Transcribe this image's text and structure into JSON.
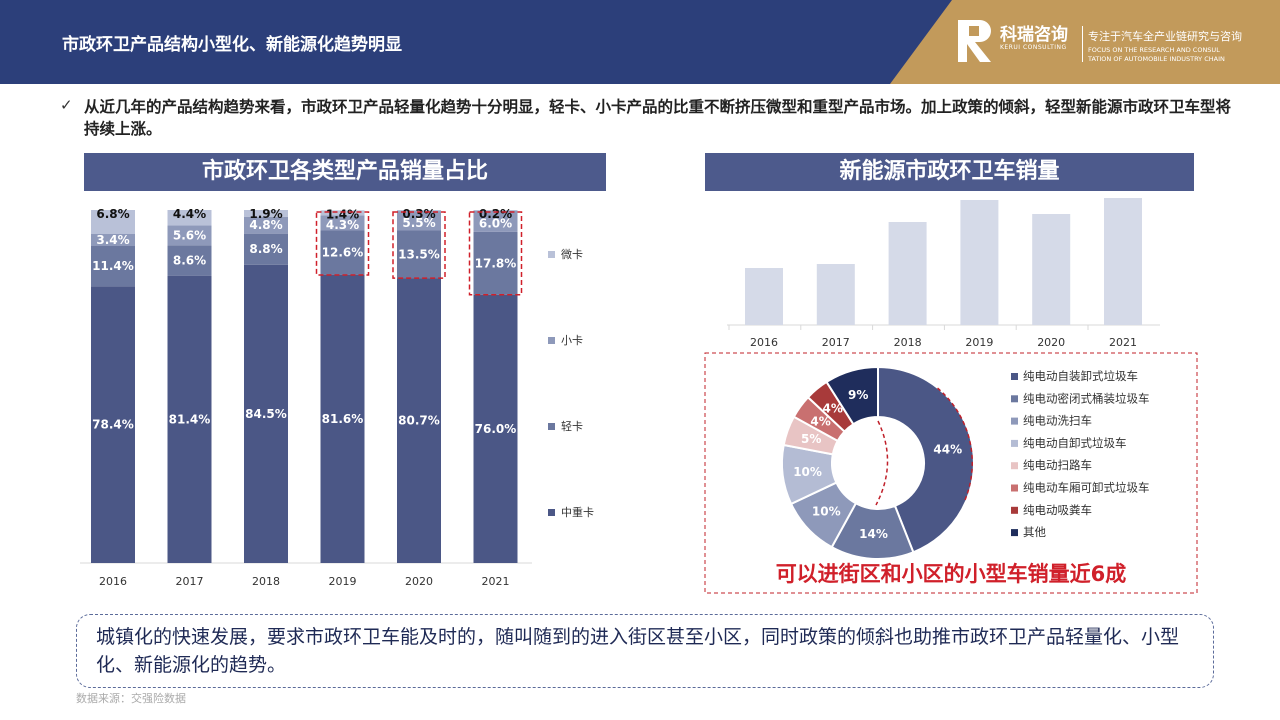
{
  "header": {
    "title": "市政环卫产品结构小型化、新能源化趋势明显",
    "logo_name": "科瑞咨询",
    "logo_en": "KERUI CONSULTING",
    "slogan": "专注于汽车全产业链研究与咨询",
    "slogan_en": "FOCUS ON THE RESEARCH AND CONSUL\nTATION OF AUTOMOBILE INDUSTRY CHAIN"
  },
  "bullet": {
    "check": "✓",
    "text": "从近几年的产品结构趋势来看，市政环卫产品轻量化趋势十分明显，轻卡、小卡产品的比重不断挤压微型和重型产品市场。加上政策的倾斜，轻型新能源市政环卫车型将持续上涨。"
  },
  "left_panel": {
    "title": "市政环卫各类型产品销量占比"
  },
  "right_panel": {
    "title": "新能源市政环卫车销量"
  },
  "highlight": "可以进街区和小区的小型车销量近6成",
  "callout": "城镇化的快速发展，要求市政环卫车能及时的，随叫随到的进入街区甚至小区，同时政策的倾斜也助推市政环卫产品轻量化、小型化、新能源化的趋势。",
  "source": "数据来源：交强险数据",
  "colors": {
    "navy": "#4d5a8c",
    "header": "#2c3f7a",
    "gold": "#c29a5b",
    "light_bar": "#d5dae8",
    "red": "#d0202a"
  },
  "chart_data": [
    {
      "type": "bar",
      "stacked": true,
      "percent": true,
      "categories": [
        "2016",
        "2017",
        "2018",
        "2019",
        "2020",
        "2021"
      ],
      "series": [
        {
          "name": "中重卡",
          "values": [
            78.4,
            81.4,
            84.5,
            81.6,
            80.7,
            76.0
          ],
          "labels": [
            "78.4%",
            "81.4%",
            "84.5%",
            "81.6%",
            "80.7%",
            "76.0%"
          ],
          "color": "#4b5786"
        },
        {
          "name": "轻卡",
          "values": [
            11.4,
            8.6,
            8.8,
            12.6,
            13.5,
            17.8
          ],
          "labels": [
            "11.4%",
            "8.6%",
            "8.8%",
            "12.6%",
            "13.5%",
            "17.8%"
          ],
          "color": "#6b789f"
        },
        {
          "name": "小卡",
          "values": [
            3.4,
            5.6,
            4.8,
            4.3,
            5.5,
            6.0
          ],
          "labels": [
            "3.4%",
            "5.6%",
            "4.8%",
            "4.3%",
            "5.5%",
            "6.0%"
          ],
          "color": "#8e99ba"
        },
        {
          "name": "微卡",
          "values": [
            6.8,
            4.4,
            1.9,
            1.4,
            0.3,
            0.2
          ],
          "labels": [
            "6.8%",
            "4.4%",
            "1.9%",
            "1.4%",
            "0.3%",
            "0.2%"
          ],
          "color": "#b9c1d8"
        }
      ],
      "legend_order": [
        "微卡",
        "小卡",
        "轻卡",
        "中重卡"
      ],
      "legend_position": "right",
      "highlighted_categories": [
        "2019",
        "2020",
        "2021"
      ]
    },
    {
      "type": "bar",
      "categories": [
        "2016",
        "2017",
        "2018",
        "2019",
        "2020",
        "2021"
      ],
      "values": [
        57,
        61,
        103,
        125,
        111,
        127
      ],
      "value_axis_labels": false,
      "color": "#d5dae8"
    },
    {
      "type": "pie",
      "donut": true,
      "slices": [
        {
          "name": "纯电动自装卸式垃圾车",
          "value": 44,
          "label": "44%",
          "color": "#4b5786"
        },
        {
          "name": "纯电动密闭式桶装垃圾车",
          "value": 14,
          "label": "14%",
          "color": "#6b789f"
        },
        {
          "name": "纯电动洗扫车",
          "value": 10,
          "label": "10%",
          "color": "#8e99ba"
        },
        {
          "name": "纯电动自卸式垃圾车",
          "value": 10,
          "label": "10%",
          "color": "#b4bcd4"
        },
        {
          "name": "纯电动扫路车",
          "value": 5,
          "label": "5%",
          "color": "#e8c4c4"
        },
        {
          "name": "纯电动车厢可卸式垃圾车",
          "value": 4,
          "label": "4%",
          "color": "#c97070"
        },
        {
          "name": "纯电动吸粪车",
          "value": 4,
          "label": "4%",
          "color": "#a83a3a"
        },
        {
          "name": "其他",
          "value": 9,
          "label": "9%",
          "color": "#1f2d5c"
        }
      ],
      "legend_position": "right"
    }
  ]
}
